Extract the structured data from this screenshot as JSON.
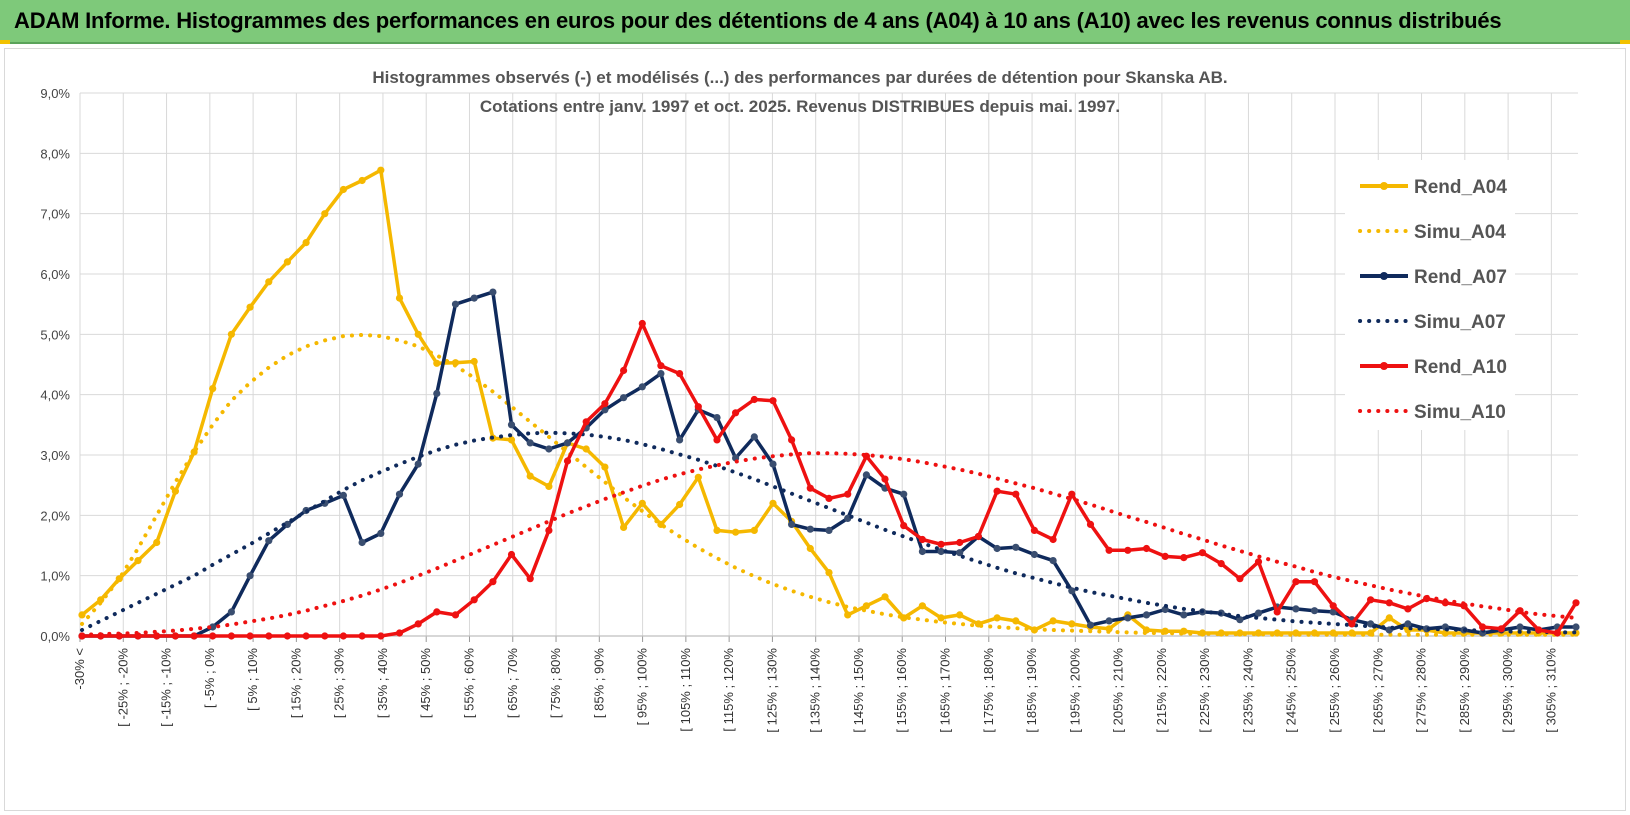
{
  "banner": {
    "title": "ADAM Informe. Histogrammes des performances en euros pour des détentions de 4 ans (A04) à 10 ans (A10) avec les revenus connus distribués"
  },
  "colors": {
    "banner": "#7ec97a",
    "a04": "#f5b800",
    "a07": "#0f2a5c",
    "a10": "#ee1111",
    "grid": "#d9d9d9"
  },
  "chart_data": {
    "type": "line",
    "title": "Histogrammes observés (-) et modélisés (...) des performances par durées de détention pour Skanska AB.",
    "subtitle": "Cotations entre janv. 1997 et oct. 2025.  Revenus DISTRIBUES depuis mai. 1997.",
    "xlabel": "",
    "ylabel": "",
    "ylim": [
      0,
      9
    ],
    "yticks": [
      "0,0%",
      "1,0%",
      "2,0%",
      "3,0%",
      "4,0%",
      "5,0%",
      "6,0%",
      "7,0%",
      "8,0%",
      "9,0%"
    ],
    "grid": true,
    "legend_position": "right",
    "x_tick_labels": [
      "-30% <",
      "[ -25% ; -20%",
      "[ -15% ; -10%",
      "[ -5% ; 0%",
      "[ 5% ; 10%",
      "[ 15% ; 20%",
      "[ 25% ; 30%",
      "[ 35% ; 40%",
      "[ 45% ; 50%",
      "[ 55% ; 60%",
      "[ 65% ; 70%",
      "[ 75% ; 80%",
      "[ 85% ; 90%",
      "[ 95% ; 100%",
      "[ 105% ; 110%",
      "[ 115% ; 120%",
      "[ 125% ; 130%",
      "[ 135% ; 140%",
      "[ 145% ; 150%",
      "[ 155% ; 160%",
      "[ 165% ; 170%",
      "[ 175% ; 180%",
      "[ 185% ; 190%",
      "[ 195% ; 200%",
      "[ 205% ; 210%",
      "[ 215% ; 220%",
      "[ 225% ; 230%",
      "[ 235% ; 240%",
      "[ 245% ; 250%",
      "[ 255% ; 260%",
      "[ 265% ; 270%",
      "[ 275% ; 280%",
      "[ 285% ; 290%",
      "[ 295% ; 300%",
      "[ 305% ; 310%"
    ],
    "series": [
      {
        "name": "Rend_A04",
        "style": "solid",
        "color": "#f5b800",
        "values": [
          0.35,
          0.6,
          0.95,
          1.25,
          1.55,
          2.4,
          3.05,
          4.1,
          5.0,
          5.45,
          5.87,
          6.2,
          6.52,
          7.0,
          7.4,
          7.55,
          7.72,
          5.6,
          5.0,
          4.52,
          4.53,
          4.55,
          3.28,
          3.25,
          2.65,
          2.48,
          3.2,
          3.1,
          2.8,
          1.8,
          2.2,
          1.85,
          2.18,
          2.63,
          1.75,
          1.72,
          1.75,
          2.2,
          1.9,
          1.45,
          1.05,
          0.35,
          0.5,
          0.65,
          0.3,
          0.5,
          0.3,
          0.35,
          0.2,
          0.3,
          0.25,
          0.1,
          0.25,
          0.2,
          0.15,
          0.12,
          0.35,
          0.1,
          0.08,
          0.08,
          0.05,
          0.05,
          0.05,
          0.05,
          0.05,
          0.05,
          0.05,
          0.05,
          0.05,
          0.05,
          0.3,
          0.1,
          0.1,
          0.05,
          0.05,
          0.05,
          0.05,
          0.05,
          0.05,
          0.05,
          0.05
        ]
      },
      {
        "name": "Simu_A04",
        "style": "dotted",
        "color": "#f5b800",
        "values": [
          0.2,
          0.55,
          0.95,
          1.45,
          2.0,
          2.55,
          3.05,
          3.5,
          3.9,
          4.2,
          4.45,
          4.65,
          4.8,
          4.9,
          4.97,
          4.99,
          4.97,
          4.9,
          4.8,
          4.65,
          4.48,
          4.28,
          4.05,
          3.8,
          3.55,
          3.3,
          3.05,
          2.8,
          2.55,
          2.3,
          2.07,
          1.85,
          1.65,
          1.46,
          1.29,
          1.13,
          0.99,
          0.86,
          0.75,
          0.65,
          0.56,
          0.48,
          0.42,
          0.36,
          0.31,
          0.27,
          0.23,
          0.2,
          0.17,
          0.15,
          0.13,
          0.11,
          0.1,
          0.09,
          0.08,
          0.07,
          0.06,
          0.05,
          0.05,
          0.04,
          0.04,
          0.03,
          0.03,
          0.03,
          0.02,
          0.02,
          0.02,
          0.02,
          0.02,
          0.02,
          0.02,
          0.02,
          0.02,
          0.02,
          0.02,
          0.02,
          0.02,
          0.02,
          0.02,
          0.02,
          0.02
        ]
      },
      {
        "name": "Rend_A07",
        "style": "solid",
        "color": "#0f2a5c",
        "values": [
          0.0,
          0.0,
          0.0,
          0.0,
          0.0,
          0.0,
          0.0,
          0.15,
          0.4,
          1.0,
          1.58,
          1.85,
          2.08,
          2.2,
          2.33,
          1.55,
          1.7,
          2.35,
          2.85,
          4.02,
          5.5,
          5.6,
          5.7,
          3.5,
          3.2,
          3.1,
          3.2,
          3.45,
          3.75,
          3.95,
          4.13,
          4.35,
          3.25,
          3.75,
          3.62,
          2.95,
          3.3,
          2.85,
          1.85,
          1.77,
          1.75,
          1.95,
          2.67,
          2.45,
          2.35,
          1.4,
          1.4,
          1.38,
          1.65,
          1.45,
          1.47,
          1.35,
          1.25,
          0.75,
          0.18,
          0.25,
          0.3,
          0.35,
          0.44,
          0.35,
          0.4,
          0.38,
          0.27,
          0.38,
          0.48,
          0.45,
          0.42,
          0.4,
          0.27,
          0.2,
          0.1,
          0.2,
          0.12,
          0.15,
          0.1,
          0.05,
          0.1,
          0.15,
          0.1,
          0.15,
          0.15
        ]
      },
      {
        "name": "Simu_A07",
        "style": "dotted",
        "color": "#0f2a5c",
        "values": [
          0.1,
          0.25,
          0.4,
          0.55,
          0.7,
          0.85,
          1.0,
          1.18,
          1.35,
          1.52,
          1.7,
          1.88,
          2.06,
          2.24,
          2.42,
          2.58,
          2.72,
          2.85,
          2.97,
          3.08,
          3.17,
          3.24,
          3.29,
          3.33,
          3.36,
          3.37,
          3.36,
          3.34,
          3.3,
          3.25,
          3.18,
          3.1,
          3.01,
          2.92,
          2.82,
          2.71,
          2.6,
          2.48,
          2.36,
          2.24,
          2.12,
          2.0,
          1.88,
          1.76,
          1.65,
          1.54,
          1.43,
          1.33,
          1.23,
          1.13,
          1.04,
          0.96,
          0.88,
          0.8,
          0.73,
          0.67,
          0.61,
          0.55,
          0.5,
          0.45,
          0.41,
          0.37,
          0.33,
          0.3,
          0.27,
          0.24,
          0.22,
          0.2,
          0.18,
          0.16,
          0.14,
          0.13,
          0.12,
          0.11,
          0.1,
          0.09,
          0.08,
          0.07,
          0.07,
          0.06,
          0.06
        ]
      },
      {
        "name": "Rend_A10",
        "style": "solid",
        "color": "#ee1111",
        "values": [
          0.0,
          0.0,
          0.0,
          0.0,
          0.0,
          0.0,
          0.0,
          0.0,
          0.0,
          0.0,
          0.0,
          0.0,
          0.0,
          0.0,
          0.0,
          0.0,
          0.0,
          0.05,
          0.2,
          0.4,
          0.35,
          0.6,
          0.9,
          1.35,
          0.95,
          1.75,
          2.9,
          3.55,
          3.85,
          4.4,
          5.18,
          4.48,
          4.35,
          3.8,
          3.25,
          3.7,
          3.92,
          3.9,
          3.25,
          2.45,
          2.28,
          2.35,
          2.98,
          2.6,
          1.83,
          1.6,
          1.52,
          1.55,
          1.65,
          2.4,
          2.35,
          1.75,
          1.6,
          2.35,
          1.85,
          1.42,
          1.42,
          1.45,
          1.32,
          1.3,
          1.38,
          1.2,
          0.95,
          1.23,
          0.4,
          0.9,
          0.9,
          0.5,
          0.2,
          0.6,
          0.55,
          0.45,
          0.62,
          0.55,
          0.5,
          0.15,
          0.12,
          0.42,
          0.1,
          0.05,
          0.55
        ]
      },
      {
        "name": "Simu_A10",
        "style": "dotted",
        "color": "#ee1111",
        "values": [
          0.02,
          0.03,
          0.04,
          0.05,
          0.07,
          0.09,
          0.12,
          0.15,
          0.19,
          0.24,
          0.29,
          0.35,
          0.42,
          0.5,
          0.58,
          0.67,
          0.77,
          0.88,
          1.0,
          1.12,
          1.25,
          1.38,
          1.51,
          1.64,
          1.77,
          1.9,
          2.03,
          2.15,
          2.27,
          2.38,
          2.49,
          2.59,
          2.68,
          2.76,
          2.83,
          2.89,
          2.94,
          2.98,
          3.01,
          3.03,
          3.03,
          3.02,
          3.0,
          2.97,
          2.93,
          2.88,
          2.82,
          2.76,
          2.69,
          2.61,
          2.53,
          2.45,
          2.36,
          2.27,
          2.18,
          2.08,
          1.98,
          1.89,
          1.79,
          1.69,
          1.6,
          1.5,
          1.41,
          1.32,
          1.23,
          1.15,
          1.06,
          0.98,
          0.91,
          0.84,
          0.77,
          0.71,
          0.65,
          0.59,
          0.54,
          0.49,
          0.45,
          0.4,
          0.36,
          0.33,
          0.3
        ]
      }
    ]
  }
}
